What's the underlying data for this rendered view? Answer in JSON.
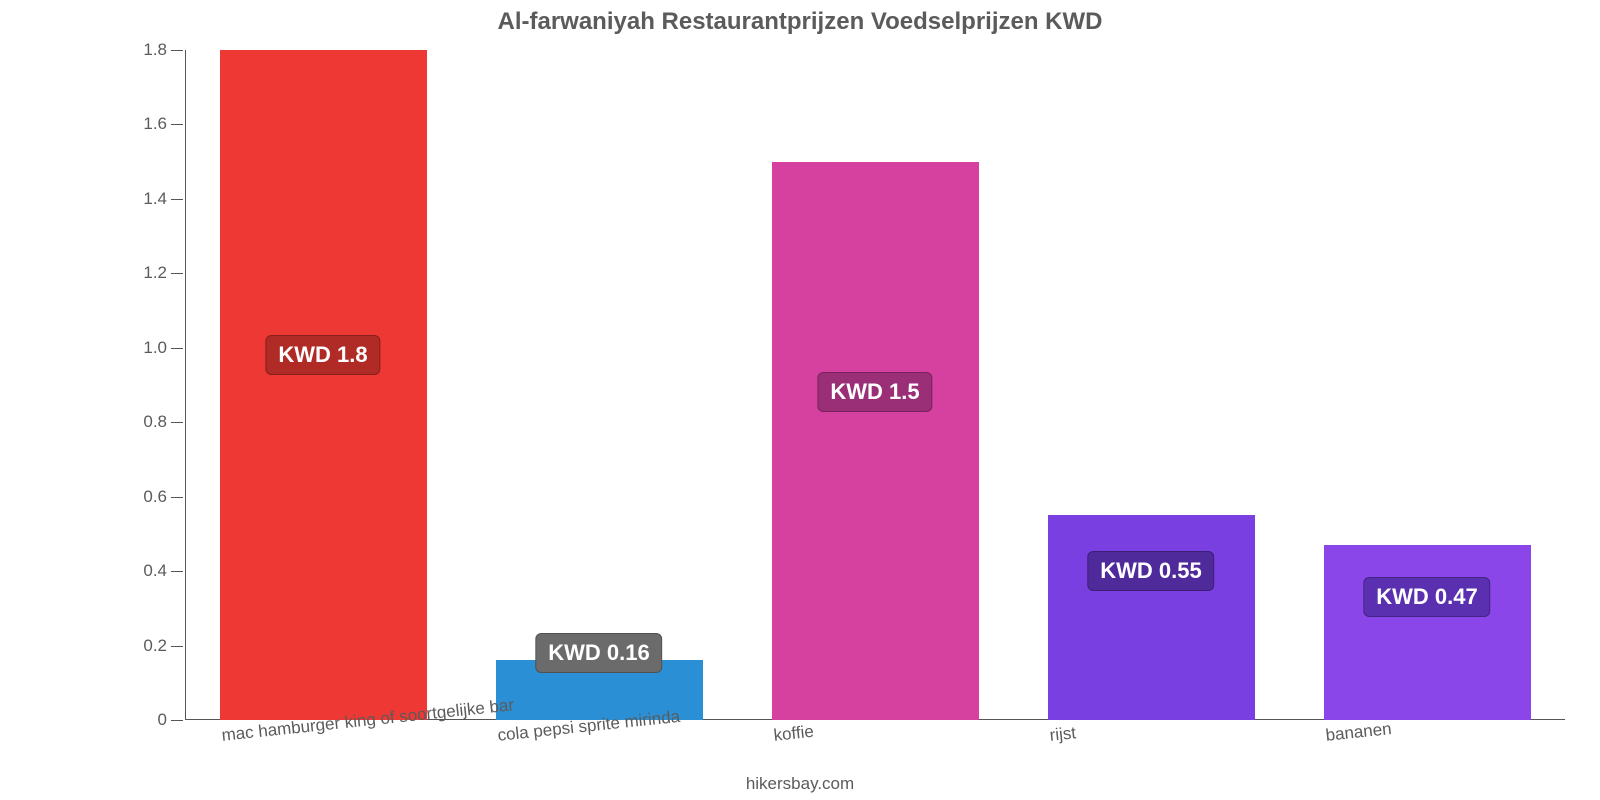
{
  "chart": {
    "type": "bar",
    "title": "Al-farwaniyah Restaurantprijzen Voedselprijzen KWD",
    "title_fontsize": 24,
    "title_color": "#5b5b5b",
    "background_color": "#ffffff",
    "axis_color": "#555555",
    "tick_label_color": "#5b5b5b",
    "tick_label_fontsize": 17,
    "ylim": [
      0,
      1.8
    ],
    "ytick_step": 0.2,
    "yticks": [
      "0",
      "0.2",
      "0.4",
      "0.6",
      "0.8",
      "1.0",
      "1.2",
      "1.4",
      "1.6",
      "1.8"
    ],
    "x_label_rotation_deg": -6,
    "bar_width_ratio": 0.75,
    "categories": [
      "mac hamburger king of soortgelijke bar",
      "cola pepsi sprite mirinda",
      "koffie",
      "rijst",
      "bananen"
    ],
    "values": [
      1.8,
      0.16,
      1.5,
      0.55,
      0.47
    ],
    "value_labels": [
      "KWD 1.8",
      "KWD 0.16",
      "KWD 1.5",
      "KWD 0.55",
      "KWD 0.47"
    ],
    "bar_colors": [
      "#ed3833",
      "#2a8fd4",
      "#d6409f",
      "#7a3fe0",
      "#8a46e8"
    ],
    "badge_colors": [
      "#b02a26",
      "#6b6b6b",
      "#9a2f78",
      "#4e2a9a",
      "#5a2fb0"
    ],
    "badge_text_color": "#ffffff",
    "badge_fontsize": 22,
    "badge_y_values": [
      0.98,
      0.18,
      0.88,
      0.4,
      0.33
    ],
    "attribution": "hikersbay.com",
    "attribution_fontsize": 17,
    "attribution_color": "#5b5b5b"
  }
}
